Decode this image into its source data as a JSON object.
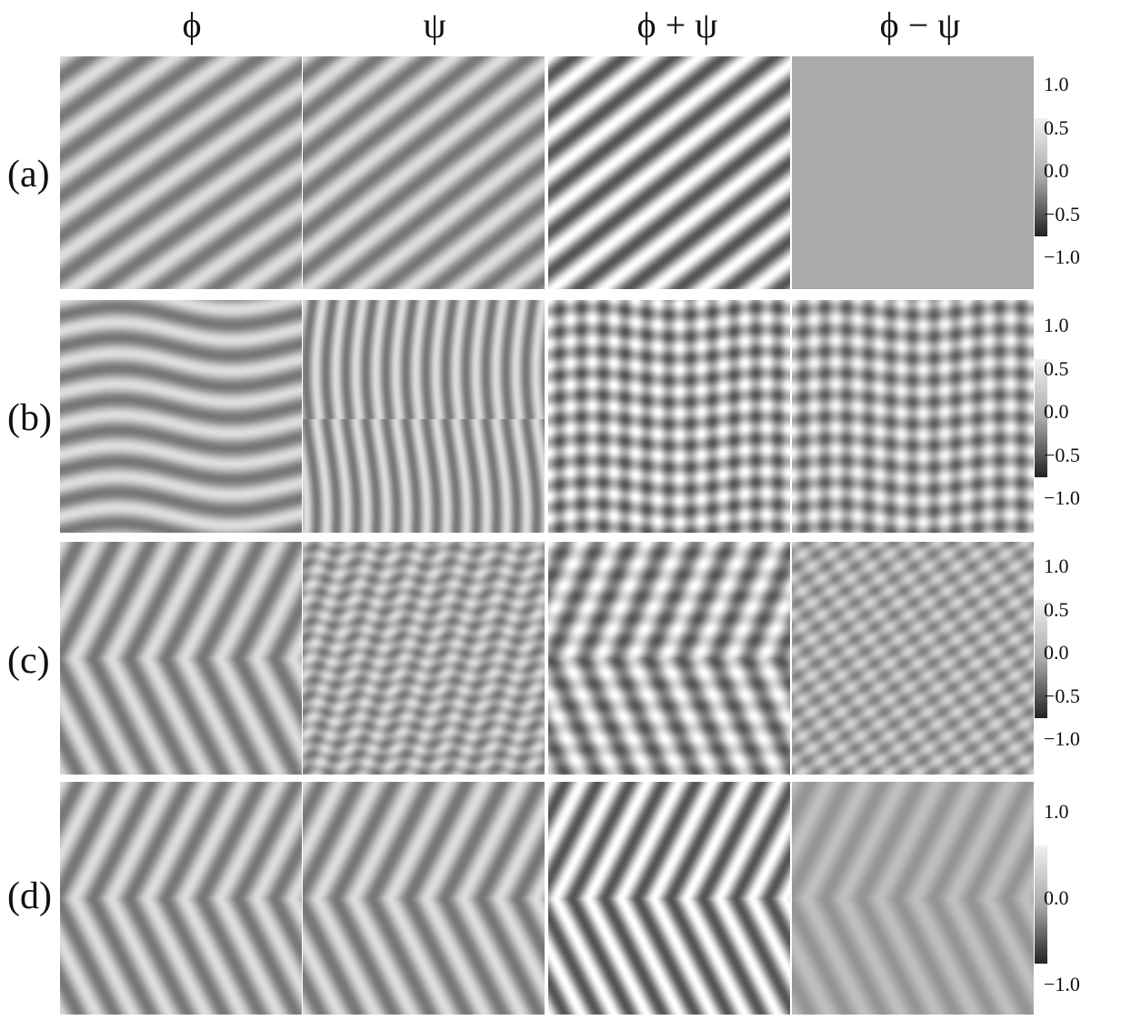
{
  "columns": [
    "ϕ",
    "ψ",
    "ϕ + ψ",
    "ϕ − ψ"
  ],
  "rows": [
    {
      "label": "(a)",
      "ticks": [
        "1.0",
        "0.5",
        "0.0",
        "−0.5",
        "−1.0"
      ],
      "panels": [
        {
          "pattern": "diagonal",
          "angle": -35,
          "period": 36,
          "contrast": 0.6
        },
        {
          "pattern": "diagonal",
          "angle": -38,
          "period": 34,
          "contrast": 0.6
        },
        {
          "pattern": "diagonal",
          "angle": -38,
          "period": 34,
          "contrast": 1.0
        },
        {
          "pattern": "flat",
          "level": 0.0
        }
      ]
    },
    {
      "label": "(b)",
      "ticks": [
        "1.0",
        "0.5",
        "0.0",
        "−0.5",
        "−1.0"
      ],
      "panels": [
        {
          "pattern": "wavy-horizontal",
          "period": 34,
          "contrast": 0.6
        },
        {
          "pattern": "wavy-vertical",
          "period": 22,
          "contrast": 0.6
        },
        {
          "pattern": "checker",
          "period": 24,
          "contrast": 1.0
        },
        {
          "pattern": "checker",
          "period": 24,
          "contrast": 0.9
        }
      ]
    },
    {
      "label": "(c)",
      "ticks": [
        "1.0",
        "0.5",
        "0.0",
        "−0.5",
        "−1.0"
      ],
      "panels": [
        {
          "pattern": "chevron",
          "period": 40,
          "contrast": 0.6
        },
        {
          "pattern": "loops",
          "period": 26,
          "contrast": 0.6
        },
        {
          "pattern": "chevron-dots",
          "period": 36,
          "contrast": 1.0
        },
        {
          "pattern": "dots",
          "period": 32,
          "contrast": 0.5
        }
      ]
    },
    {
      "label": "(d)",
      "ticks": [
        "1.0",
        "0.0",
        "−1.0"
      ],
      "panels": [
        {
          "pattern": "chevron",
          "period": 40,
          "contrast": 0.6
        },
        {
          "pattern": "chevron",
          "period": 40,
          "contrast": 0.6
        },
        {
          "pattern": "chevron",
          "period": 36,
          "contrast": 1.0
        },
        {
          "pattern": "chevron",
          "period": 40,
          "contrast": 0.25
        }
      ]
    }
  ]
}
